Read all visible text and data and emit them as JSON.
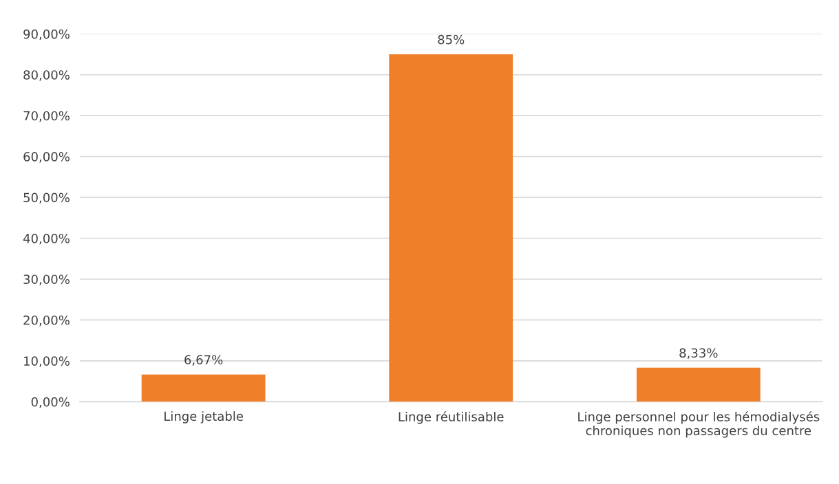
{
  "chart_data": {
    "type": "bar",
    "categories": [
      "Linge jetable",
      "Linge réutilisable",
      "Linge personnel pour les hémodialysés chroniques non passagers du centre"
    ],
    "values": [
      6.67,
      85,
      8.33
    ],
    "value_labels": [
      "6,67%",
      "85%",
      "8,33%"
    ],
    "color": "#f07f2a",
    "ylim": [
      0,
      90
    ],
    "yticks": [
      {
        "value": 0,
        "label": "0,00%"
      },
      {
        "value": 10,
        "label": "10,00%"
      },
      {
        "value": 20,
        "label": "20,00%"
      },
      {
        "value": 30,
        "label": "30,00%"
      },
      {
        "value": 40,
        "label": "40,00%"
      },
      {
        "value": 50,
        "label": "50,00%"
      },
      {
        "value": 60,
        "label": "60,00%"
      },
      {
        "value": 70,
        "label": "70,00%"
      },
      {
        "value": 80,
        "label": "80,00%"
      },
      {
        "value": 90,
        "label": "90,00%"
      }
    ],
    "grid": "y"
  }
}
